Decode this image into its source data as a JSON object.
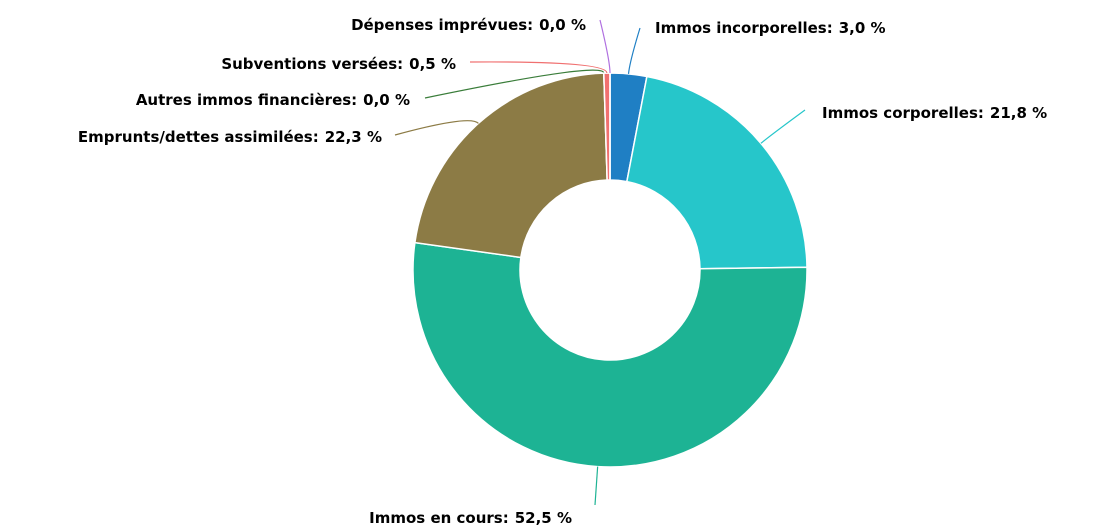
{
  "chart_data": {
    "type": "donut",
    "categories": [
      "Immos incorporelles:",
      "Immos corporelles:",
      "Immos en cours:",
      "Emprunts/dettes assimilées:",
      "Autres immos financières:",
      "Subventions versées:",
      "Dépenses imprévues:"
    ],
    "values": [
      3.0,
      21.8,
      52.5,
      22.3,
      0.0,
      0.5,
      0.0
    ],
    "value_labels": [
      "3,0 %",
      "21,8 %",
      "52,5 %",
      "22,3 %",
      "0,0 %",
      "0,5 %",
      "0,0 %"
    ],
    "colors": [
      "#1f7fc4",
      "#26c6ca",
      "#1db394",
      "#8c7b45",
      "#3a7d3a",
      "#f07070",
      "#b070e0"
    ]
  }
}
